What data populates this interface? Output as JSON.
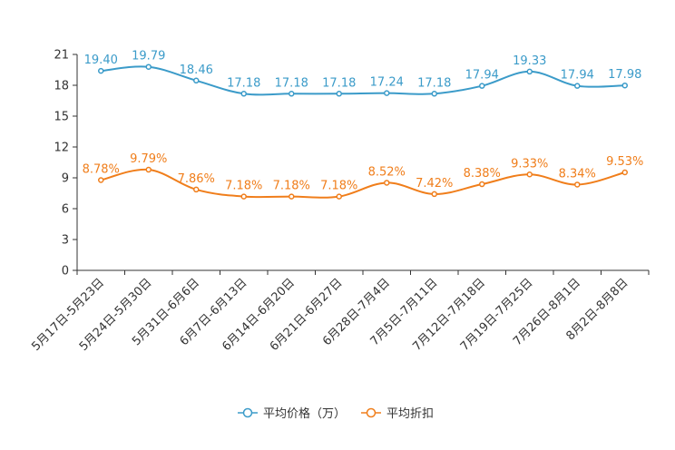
{
  "chart_data": {
    "type": "line",
    "title": "",
    "xlabel": "",
    "ylabel": "",
    "ylim": [
      0,
      21
    ],
    "yticks": [
      0,
      3,
      6,
      9,
      12,
      15,
      18,
      21
    ],
    "grid": false,
    "legend_position": "bottom-center",
    "categories": [
      "5月17日-5月23日",
      "5月24日-5月30日",
      "5月31日-6月6日",
      "6月7日-6月13日",
      "6月14日-6月20日",
      "6月21日-6月27日",
      "6月28日-7月4日",
      "7月5日-7月11日",
      "7月12日-7月18日",
      "7月19日-7月25日",
      "7月26日-8月1日",
      "8月2日-8月8日"
    ],
    "series": [
      {
        "name": "平均价格（万）",
        "color": "#3b9bc9",
        "values": [
          19.4,
          19.79,
          18.46,
          17.18,
          17.18,
          17.18,
          17.24,
          17.18,
          17.94,
          19.33,
          17.94,
          17.98
        ],
        "labels": [
          "19.40",
          "19.79",
          "18.46",
          "17.18",
          "17.18",
          "17.18",
          "17.24",
          "17.18",
          "17.94",
          "19.33",
          "17.94",
          "17.98"
        ]
      },
      {
        "name": "平均折扣",
        "color": "#f07e1b",
        "values": [
          8.78,
          9.79,
          7.86,
          7.18,
          7.18,
          7.18,
          8.52,
          7.42,
          8.38,
          9.33,
          8.34,
          9.53
        ],
        "labels": [
          "8.78%",
          "9.79%",
          "7.86%",
          "7.18%",
          "7.18%",
          "7.18%",
          "8.52%",
          "7.42%",
          "8.38%",
          "9.33%",
          "8.34%",
          "9.53%"
        ]
      }
    ]
  }
}
